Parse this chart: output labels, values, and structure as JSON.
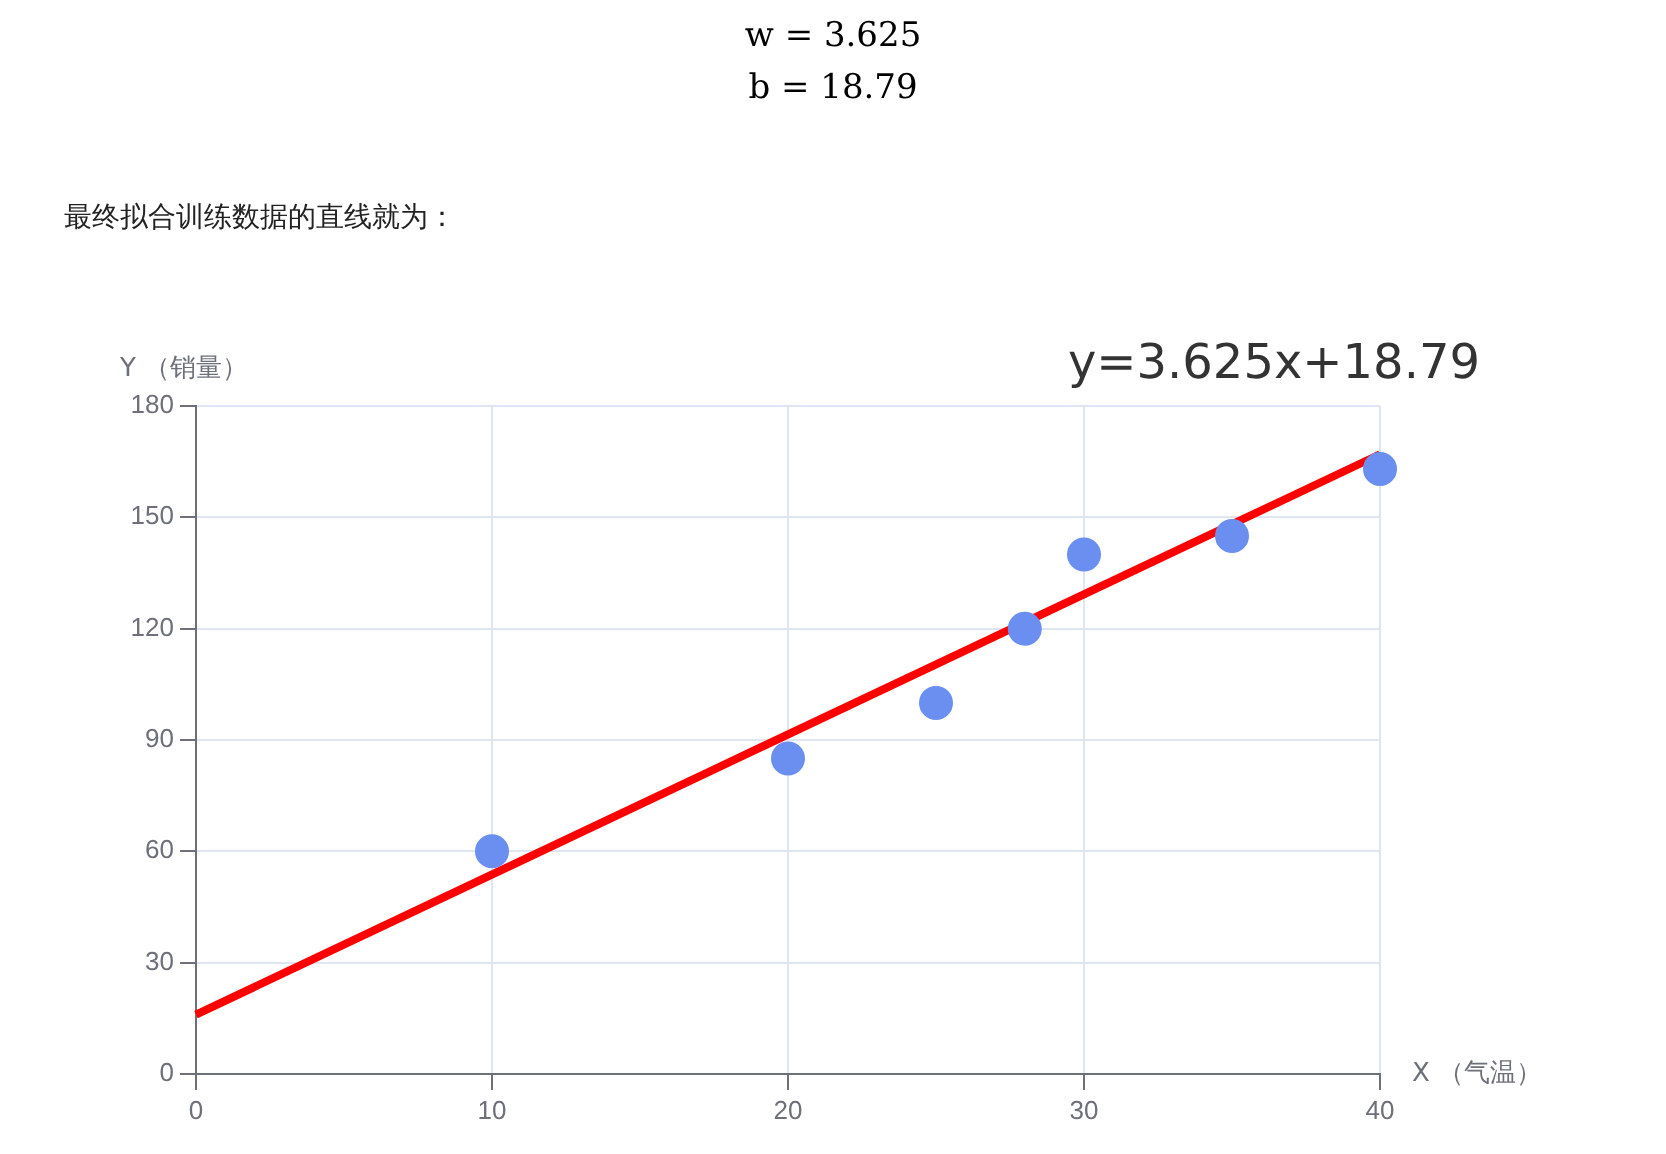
{
  "chart_data": {
    "type": "scatter",
    "annotations": [
      "w = 3.625",
      "b = 18.79",
      "最终拟合训练数据的直线就为：",
      "y=3.625x+18.79"
    ],
    "xlabel": "X （气温）",
    "ylabel": "Y （销量）",
    "xlim": [
      0,
      40
    ],
    "xticks": [
      0,
      10,
      20,
      30,
      40
    ],
    "ylim": [
      0,
      180
    ],
    "yticks": [
      0,
      30,
      60,
      90,
      120,
      150,
      180
    ],
    "grid": true,
    "legend": false,
    "series": [
      {
        "color": "#6b8ff0",
        "marker": "circle",
        "x": [
          10,
          20,
          25,
          28,
          30,
          35,
          40
        ],
        "values": [
          60,
          85,
          100,
          120,
          140,
          145,
          163
        ]
      },
      {
        "type": "line",
        "color": "#ff0000",
        "marker": "none",
        "x": [
          0,
          40
        ],
        "values": [
          16,
          167
        ]
      }
    ]
  }
}
